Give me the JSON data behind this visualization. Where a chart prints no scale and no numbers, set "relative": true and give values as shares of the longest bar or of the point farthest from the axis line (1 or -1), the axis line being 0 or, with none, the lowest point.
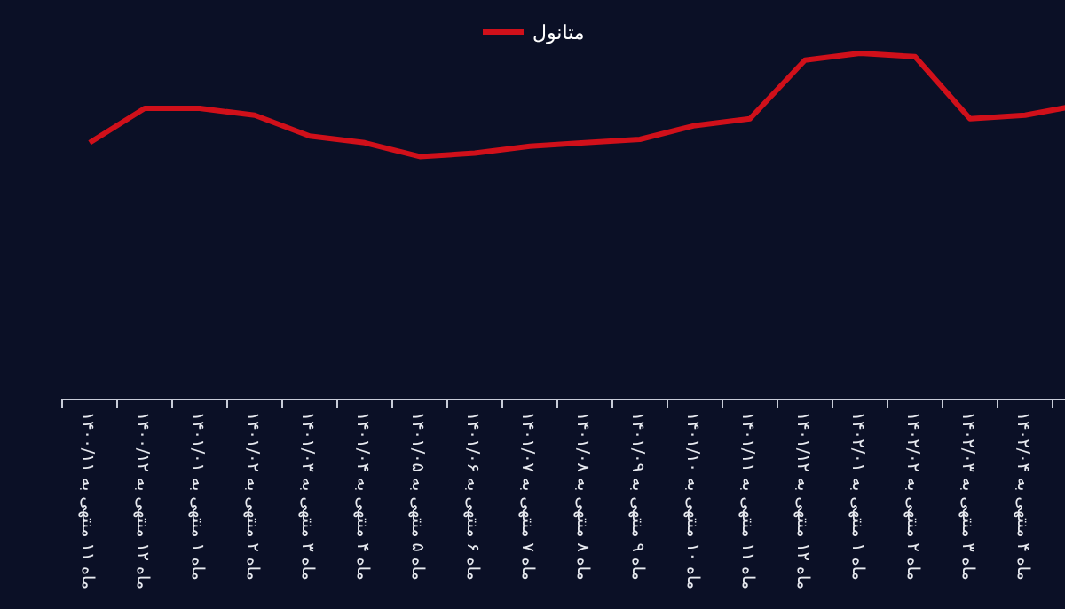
{
  "chart_data": {
    "type": "line",
    "relative": true,
    "legend": "top",
    "categories": [
      "ماه ۱۱ منتهی به ۱۴۰۰/۱۱",
      "ماه ۱۲ منتهی به ۱۴۰۰/۱۲",
      "ماه ۱ منتهی به ۱۴۰۱/۰۱",
      "ماه ۲ منتهی به ۱۴۰۱/۰۲",
      "ماه ۳ منتهی به ۱۴۰۱/۰۳",
      "ماه ۴ منتهی به ۱۴۰۱/۰۴",
      "ماه ۵ منتهی به ۱۴۰۱/۰۵",
      "ماه ۶ منتهی به ۱۴۰۱/۰۶",
      "ماه ۷ منتهی به ۱۴۰۱/۰۷",
      "ماه ۸ منتهی به ۱۴۰۱/۰۸",
      "ماه ۹ منتهی به ۱۴۰۱/۰۹",
      "ماه ۱۰ منتهی به ۱۴۰۱/۱۰",
      "ماه ۱۱ منتهی به ۱۴۰۱/۱۱",
      "ماه ۱۲ منتهی به ۱۴۰۱/۱۲",
      "ماه ۱ منتهی به ۱۴۰۲/۰۱",
      "ماه ۲ منتهی به ۱۴۰۲/۰۲",
      "ماه ۳ منتهی به ۱۴۰۲/۰۳",
      "ماه ۴ منتهی به ۱۴۰۲/۰۴",
      null
    ],
    "series": [
      {
        "name": "متانول",
        "color": "#d0101a",
        "values": [
          0.74,
          0.84,
          0.84,
          0.82,
          0.76,
          0.74,
          0.7,
          0.71,
          0.73,
          0.74,
          0.75,
          0.79,
          0.81,
          0.98,
          1,
          0.99,
          0.81,
          0.82,
          0.85
        ]
      }
    ]
  }
}
